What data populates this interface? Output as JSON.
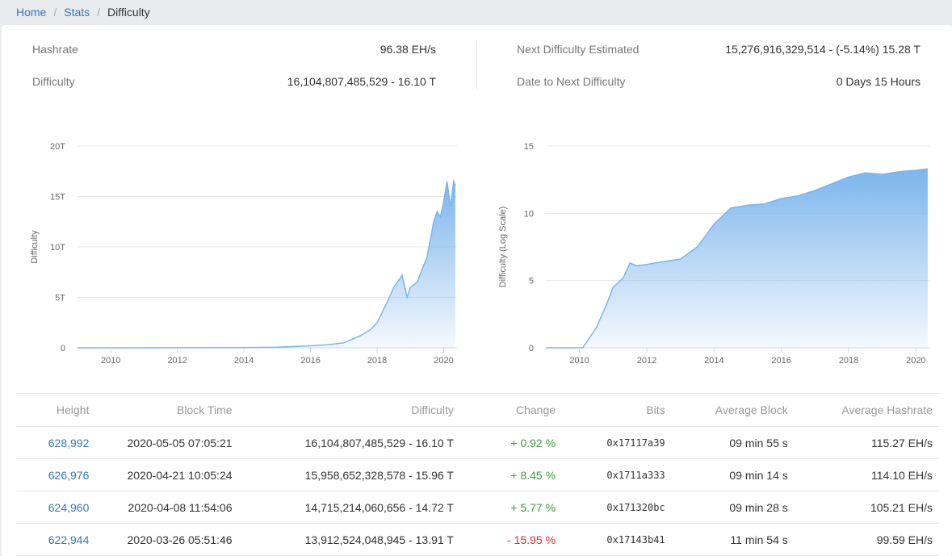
{
  "breadcrumb": {
    "home": "Home",
    "stats": "Stats",
    "current": "Difficulty"
  },
  "stats": {
    "hashrate_label": "Hashrate",
    "hashrate_value": "96.38 EH/s",
    "difficulty_label": "Difficulty",
    "difficulty_value": "16,104,807,485,529 - 16.10 T",
    "next_label": "Next Difficulty Estimated",
    "next_value": "15,276,916,329,514 - (-5.14%) 15.28 T",
    "date_label": "Date to Next Difficulty",
    "date_value": "0 Days 15 Hours"
  },
  "chart_data": [
    {
      "type": "area",
      "title": "",
      "xlabel": "Difficulty",
      "ylabel": "Difficulty",
      "xlim": [
        2009,
        2020.4
      ],
      "ylim": [
        0,
        20
      ],
      "x_ticks": [
        "2010",
        "2012",
        "2014",
        "2016",
        "2018",
        "2020"
      ],
      "y_ticks": [
        "0",
        "5T",
        "10T",
        "15T",
        "20T"
      ],
      "series": [
        {
          "x": [
            2009,
            2013,
            2014,
            2015,
            2016,
            2016.5,
            2017,
            2017.5,
            2017.8,
            2018,
            2018.3,
            2018.5,
            2018.75,
            2018.9,
            2019,
            2019.2,
            2019.5,
            2019.7,
            2019.8,
            2019.9,
            2020,
            2020.1,
            2020.2,
            2020.3,
            2020.35
          ],
          "y": [
            0,
            0.01,
            0.02,
            0.06,
            0.2,
            0.3,
            0.5,
            1.2,
            1.8,
            2.5,
            4.5,
            6.0,
            7.2,
            5.0,
            6.0,
            6.5,
            9.0,
            12.5,
            13.5,
            13.0,
            14.5,
            16.5,
            14.0,
            16.5,
            16.1
          ]
        }
      ],
      "grid": true
    },
    {
      "type": "area",
      "title": "",
      "xlabel": "Difficulty (Log Scale)",
      "ylabel": "Difficulty (Log Scale)",
      "xlim": [
        2009,
        2020.4
      ],
      "ylim": [
        0,
        15
      ],
      "x_ticks": [
        "2010",
        "2012",
        "2014",
        "2016",
        "2018",
        "2020"
      ],
      "y_ticks": [
        "0",
        "5",
        "10",
        "15"
      ],
      "series": [
        {
          "x": [
            2009,
            2010.1,
            2010.5,
            2010.8,
            2011,
            2011.3,
            2011.5,
            2011.7,
            2012,
            2012.5,
            2013,
            2013.5,
            2014,
            2014.5,
            2015,
            2015.5,
            2016,
            2016.5,
            2017,
            2017.5,
            2018,
            2018.5,
            2019,
            2019.5,
            2020,
            2020.35
          ],
          "y": [
            0,
            0,
            1.5,
            3.2,
            4.5,
            5.2,
            6.3,
            6.1,
            6.2,
            6.4,
            6.6,
            7.5,
            9.2,
            10.4,
            10.6,
            10.7,
            11.1,
            11.3,
            11.7,
            12.2,
            12.7,
            13.0,
            12.9,
            13.1,
            13.2,
            13.3
          ]
        }
      ],
      "grid": true
    }
  ],
  "table": {
    "headers": [
      "Height",
      "Block Time",
      "Difficulty",
      "Change",
      "Bits",
      "Average Block",
      "Average Hashrate"
    ],
    "rows": [
      [
        "628,992",
        "2020-05-05 07:05:21",
        "16,104,807,485,529 - 16.10 T",
        "+ 0.92 %",
        "0x17117a39",
        "09 min 55 s",
        "115.27 EH/s"
      ],
      [
        "626,976",
        "2020-04-21 10:05:24",
        "15,958,652,328,578 - 15.96 T",
        "+ 8.45 %",
        "0x1711a333",
        "09 min 14 s",
        "114.10 EH/s"
      ],
      [
        "624,960",
        "2020-04-08 11:54:06",
        "14,715,214,060,656 - 14.72 T",
        "+ 5.77 %",
        "0x171320bc",
        "09 min 28 s",
        "105.21 EH/s"
      ],
      [
        "622,944",
        "2020-03-26 05:51:46",
        "13,912,524,048,945 - 13.91 T",
        "- 15.95 %",
        "0x17143b41",
        "11 min 54 s",
        "99.59 EH/s"
      ]
    ],
    "change_colors": {
      "positive": "#3c9d3c",
      "negative": "#d9312b"
    }
  }
}
